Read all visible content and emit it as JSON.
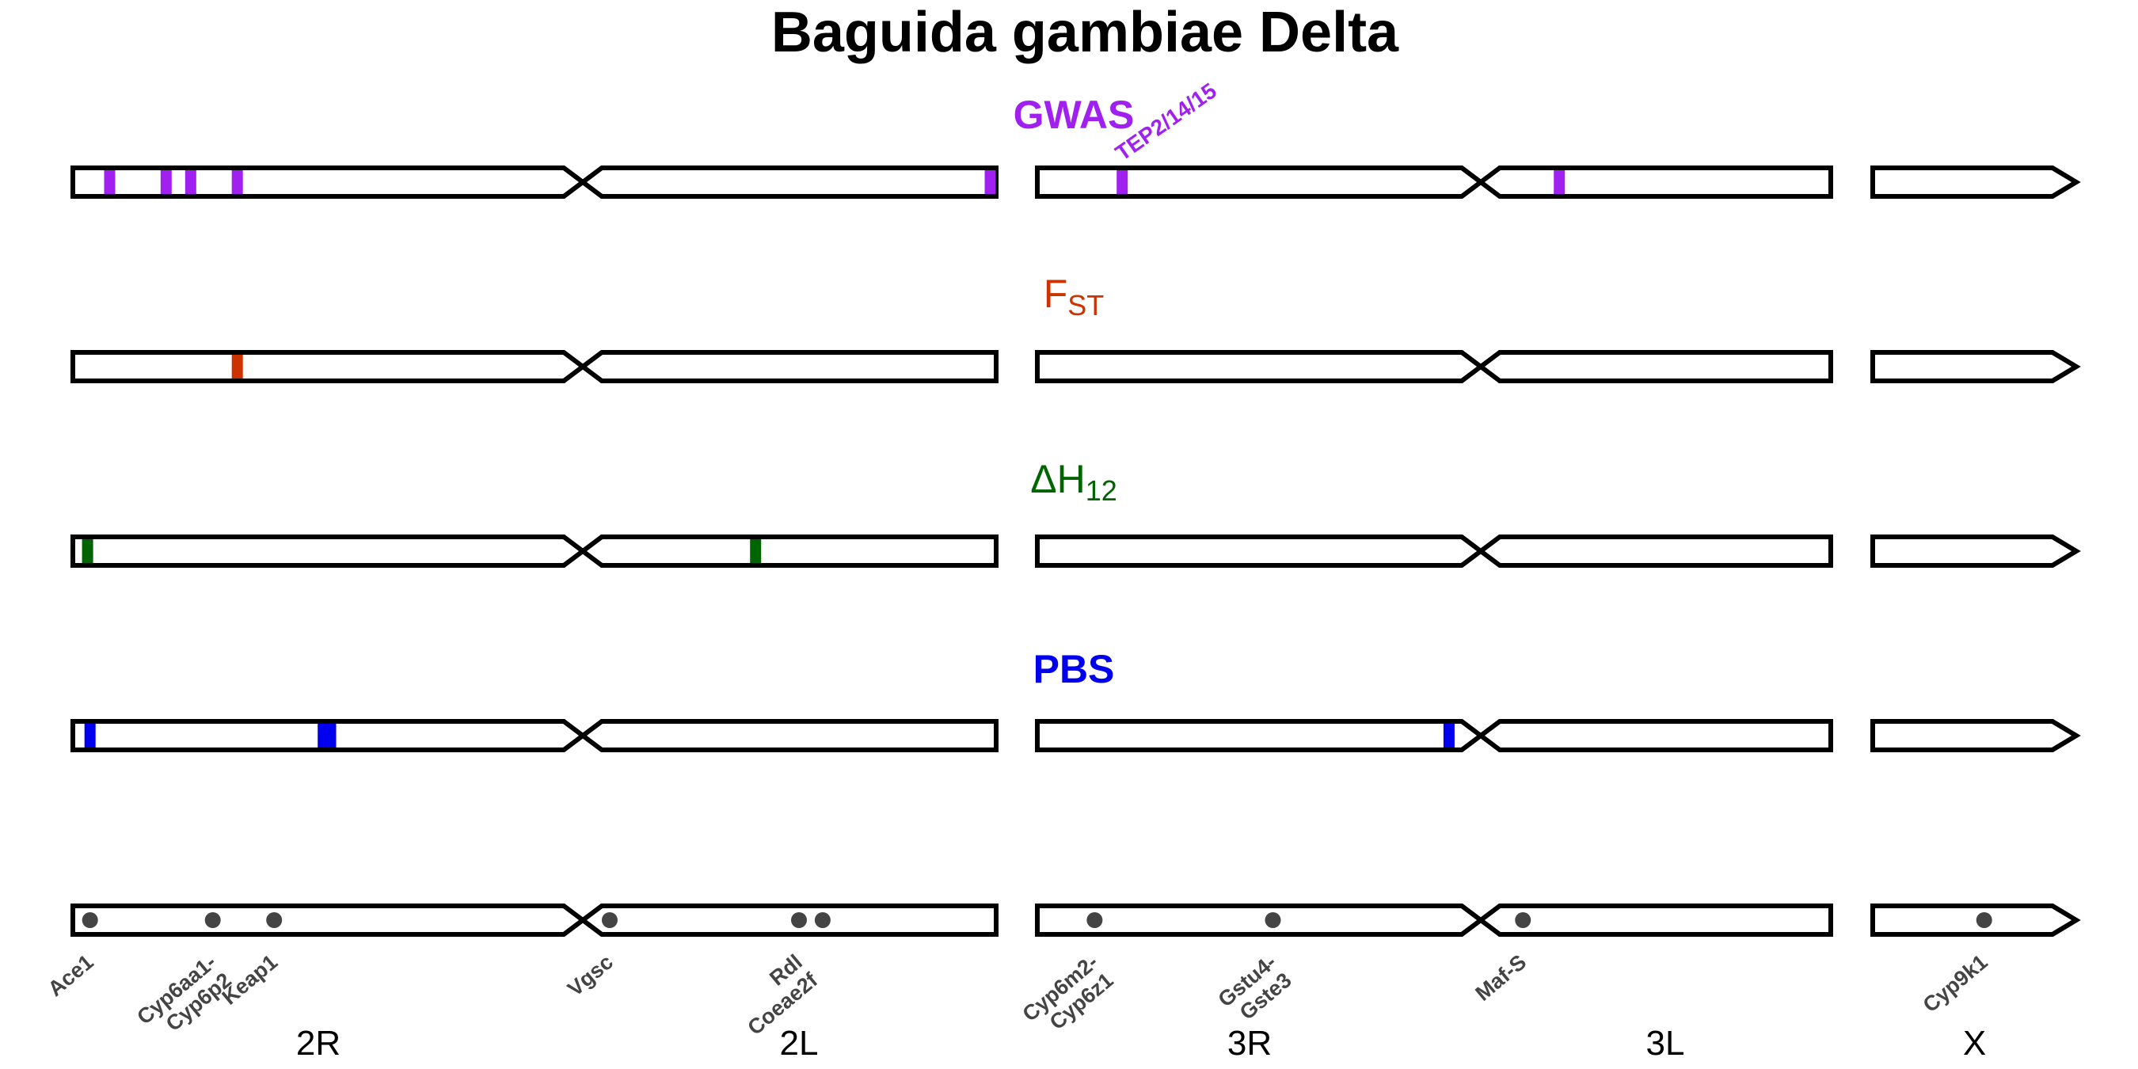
{
  "title": "Baguida gambiae Delta",
  "arms": [
    "2R",
    "2L",
    "3R",
    "3L",
    "X"
  ],
  "tracks": [
    {
      "id": "gwas",
      "label": "GWAS",
      "label_sub": "",
      "color": "#a020f0",
      "bold": true,
      "peaks": [
        {
          "arm": "2R",
          "pos": 0.075
        },
        {
          "arm": "2R",
          "pos": 0.19
        },
        {
          "arm": "2R",
          "pos": 0.24
        },
        {
          "arm": "2R",
          "pos": 0.335
        },
        {
          "arm": "2L",
          "pos": 0.985
        },
        {
          "arm": "3R",
          "pos": 0.2,
          "label": "TEP2/14/15"
        },
        {
          "arm": "3L",
          "pos": 0.18
        }
      ]
    },
    {
      "id": "fst",
      "label": "F",
      "label_sub": "ST",
      "color": "#cc3300",
      "bold": false,
      "peaks": [
        {
          "arm": "2R",
          "pos": 0.335
        }
      ]
    },
    {
      "id": "h12",
      "label": "ΔH",
      "label_sub": "12",
      "color": "#006400",
      "bold": false,
      "peaks": [
        {
          "arm": "2R",
          "pos": 0.03
        },
        {
          "arm": "2L",
          "pos": 0.39
        }
      ]
    },
    {
      "id": "pbs",
      "label": "PBS",
      "label_sub": "",
      "color": "#0000ee",
      "bold": true,
      "peaks": [
        {
          "arm": "2R",
          "pos": 0.035
        },
        {
          "arm": "2R",
          "pos": 0.51
        },
        {
          "arm": "2R",
          "pos": 0.525
        },
        {
          "arm": "3R",
          "pos": 0.97
        }
      ]
    }
  ],
  "genes": [
    {
      "name": "Ace1",
      "arm": "2R",
      "pos": 0.035
    },
    {
      "name": "Cyp6aa1-\nCyp6p2",
      "arm": "2R",
      "pos": 0.285
    },
    {
      "name": "Keap1",
      "arm": "2R",
      "pos": 0.41
    },
    {
      "name": "Vgsc",
      "arm": "2L",
      "pos": 0.02
    },
    {
      "name": "Rdl\nCoeae2f",
      "arm": "2L",
      "pos": 0.5,
      "dots": [
        0.5,
        0.56
      ]
    },
    {
      "name": "Cyp6m2-\nCyp6z1",
      "arm": "3R",
      "pos": 0.135
    },
    {
      "name": "Gstu4-\nGste3",
      "arm": "3R",
      "pos": 0.555
    },
    {
      "name": "Maf-S",
      "arm": "3L",
      "pos": 0.07
    },
    {
      "name": "Cyp9k1",
      "arm": "X",
      "pos": 0.62
    }
  ]
}
